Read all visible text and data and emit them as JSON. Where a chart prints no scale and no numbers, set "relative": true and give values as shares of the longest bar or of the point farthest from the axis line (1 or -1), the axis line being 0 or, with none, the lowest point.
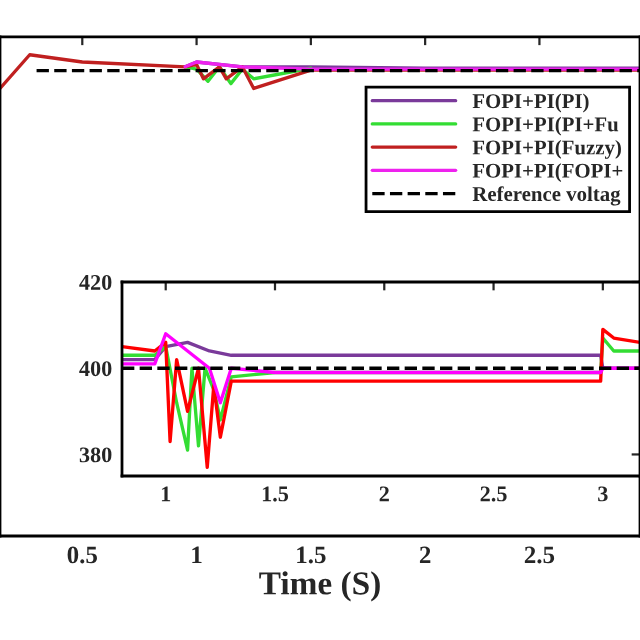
{
  "chart_data": [
    {
      "type": "line",
      "relative": true,
      "xlabel": "Time (S)",
      "xlim": [
        0.14,
        2.94
      ],
      "xticks": [
        0.5,
        1,
        1.5,
        2,
        2.5
      ],
      "tick_labels": "x",
      "legend": "top right",
      "grid": false,
      "series": [
        {
          "name": "FOPI+PI(PI)",
          "color": "#7a3a9a",
          "x": [
            0.95,
            1.0,
            1.2,
            1.5,
            2.0,
            2.5,
            2.94
          ],
          "values": [
            0.975,
            0.985,
            0.975,
            0.975,
            0.972,
            0.972,
            0.972
          ]
        },
        {
          "name": "FOPI+PI(PI+Fu",
          "color": "#33dd33",
          "x": [
            0.95,
            1.0,
            1.05,
            1.1,
            1.15,
            1.2,
            1.25,
            1.5
          ],
          "values": [
            0.975,
            0.97,
            0.945,
            0.975,
            0.94,
            0.97,
            0.95,
            0.972
          ]
        },
        {
          "name": "FOPI+PI(Fuzzy)",
          "color": "#c02020",
          "x": [
            0.14,
            0.27,
            0.5,
            0.95,
            1.0,
            1.03,
            1.1,
            1.13,
            1.2,
            1.25,
            1.5,
            2.0,
            2.5,
            2.94
          ],
          "values": [
            0.93,
            1.0,
            0.985,
            0.975,
            0.98,
            0.95,
            0.975,
            0.95,
            0.975,
            0.93,
            0.968,
            0.968,
            0.968,
            0.968
          ]
        },
        {
          "name": "FOPI+PI(FOPI+",
          "color": "#ee22ee",
          "x": [
            0.95,
            1.0,
            1.2,
            1.5,
            2.0,
            2.5,
            2.94
          ],
          "values": [
            0.975,
            0.985,
            0.975,
            0.97,
            0.97,
            0.97,
            0.97
          ]
        },
        {
          "name": "Reference voltag",
          "color": "#000000",
          "line_style": "dashed",
          "x": [
            0.3,
            2.94
          ],
          "values": [
            0.967,
            0.967
          ]
        }
      ]
    },
    {
      "type": "line",
      "xlim": [
        0.8,
        3.17
      ],
      "ylim": [
        375,
        420
      ],
      "xticks": [
        1,
        1.5,
        2,
        2.5,
        3
      ],
      "yticks": [
        380,
        400,
        420
      ],
      "legend": false,
      "grid": false,
      "ref_lines": [
        {
          "axis": "y",
          "value": 400,
          "color": "#000000",
          "line_style": "dashed"
        }
      ],
      "series": [
        {
          "color": "#7a3a9a",
          "x": [
            0.8,
            0.95,
            1.0,
            1.1,
            1.2,
            1.3,
            1.5,
            2.0,
            2.5,
            2.99,
            3.0,
            3.17
          ],
          "values": [
            402,
            402,
            405,
            406,
            404,
            403,
            403,
            403,
            403,
            403,
            400,
            400
          ]
        },
        {
          "color": "#33dd33",
          "x": [
            0.8,
            0.95,
            1.0,
            1.05,
            1.1,
            1.12,
            1.15,
            1.18,
            1.22,
            1.25,
            1.3,
            1.5,
            2.0,
            2.5,
            2.99,
            3.0,
            3.05,
            3.17
          ],
          "values": [
            403,
            403,
            405,
            392,
            381,
            400,
            382,
            400,
            395,
            388,
            398,
            399,
            399,
            399,
            399,
            407,
            404,
            404
          ]
        },
        {
          "color": "#ff0000",
          "x": [
            0.8,
            0.95,
            1.0,
            1.02,
            1.05,
            1.1,
            1.15,
            1.19,
            1.22,
            1.25,
            1.3,
            1.5,
            2.0,
            2.5,
            2.99,
            3.0,
            3.05,
            3.17
          ],
          "values": [
            405,
            404,
            406,
            383,
            402,
            390,
            400,
            377,
            396,
            384,
            397,
            397,
            397,
            397,
            397,
            409,
            407,
            406
          ]
        },
        {
          "color": "#ff00ff",
          "x": [
            0.8,
            0.95,
            1.0,
            1.1,
            1.2,
            1.25,
            1.3,
            1.5,
            2.0,
            2.5,
            2.99,
            3.0,
            3.17
          ],
          "values": [
            401,
            401,
            408,
            404,
            400,
            392,
            400,
            399,
            399,
            399,
            399,
            400,
            400
          ]
        }
      ]
    }
  ]
}
